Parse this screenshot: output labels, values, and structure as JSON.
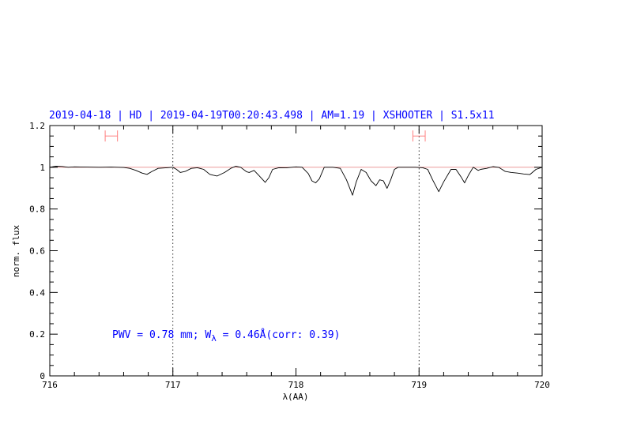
{
  "chart_data": {
    "type": "line",
    "title": "2019-04-18 | HD | 2019-04-19T00:20:43.498 | AM=1.19 | XSHOOTER | S1.5x11",
    "xlabel": "λ(AA)",
    "ylabel": "norm. flux",
    "xlim": [
      716,
      720
    ],
    "ylim": [
      0,
      1.2
    ],
    "xticks": [
      "716",
      "717",
      "718",
      "719",
      "720"
    ],
    "yticks": [
      "0",
      "0.2",
      "0.4",
      "0.6",
      "0.8",
      "1",
      "1.2"
    ],
    "continuum_level": 1.0,
    "vertical_markers": [
      717,
      719
    ],
    "error_bars": [
      {
        "x": [
          716.45,
          716.55
        ],
        "y": 1.15
      },
      {
        "x": [
          718.95,
          719.05
        ],
        "y": 1.15
      }
    ],
    "annotation": {
      "part1": "PWV = 0.78 mm; W",
      "sub": "λ",
      "part2": " = 0.46Å(corr: 0.39)"
    },
    "colors": {
      "title": "#0000ff",
      "annotation": "#0000ff",
      "spectrum": "#000000",
      "continuum": "#e07070",
      "error_bars": "#ff8080"
    },
    "series": [
      {
        "x": [
          716.0,
          716.05,
          716.1,
          716.15,
          716.2,
          716.3,
          716.4,
          716.5,
          716.6,
          716.65,
          716.7,
          716.75,
          716.79,
          716.83,
          716.88,
          716.95,
          717.0,
          717.03,
          717.06,
          717.1,
          717.15,
          717.2,
          717.25,
          717.3,
          717.33,
          717.36,
          717.42,
          717.47,
          717.51,
          717.55,
          717.6,
          717.62,
          717.66,
          717.7,
          717.75,
          717.78,
          717.81,
          717.86,
          717.92,
          718.0,
          718.05,
          718.1,
          718.13,
          718.16,
          718.19,
          718.23,
          718.3,
          718.36,
          718.41,
          718.46,
          718.49,
          718.53,
          718.57,
          718.61,
          718.65,
          718.68,
          718.71,
          718.74,
          718.77,
          718.8,
          718.83,
          718.9,
          718.97,
          719.03,
          719.07,
          719.11,
          719.16,
          719.2,
          719.26,
          719.3,
          719.34,
          719.37,
          719.4,
          719.44,
          719.48,
          719.5,
          719.55,
          719.6,
          719.65,
          719.7,
          719.75,
          719.8,
          719.85,
          719.9,
          719.95,
          720.0
        ],
        "y": [
          1.0,
          1.005,
          1.004,
          1.0,
          1.002,
          1.001,
          1.0,
          1.001,
          0.999,
          0.995,
          0.985,
          0.972,
          0.966,
          0.98,
          0.995,
          0.998,
          1.0,
          0.99,
          0.975,
          0.98,
          0.995,
          0.998,
          0.99,
          0.966,
          0.962,
          0.958,
          0.975,
          0.995,
          1.005,
          1.0,
          0.978,
          0.975,
          0.985,
          0.96,
          0.928,
          0.95,
          0.99,
          0.998,
          0.997,
          1.002,
          1.0,
          0.97,
          0.935,
          0.925,
          0.945,
          1.0,
          1.0,
          0.995,
          0.94,
          0.866,
          0.93,
          0.99,
          0.975,
          0.935,
          0.912,
          0.94,
          0.935,
          0.899,
          0.94,
          0.99,
          1.0,
          1.0,
          1.0,
          0.998,
          0.99,
          0.94,
          0.883,
          0.93,
          0.99,
          0.99,
          0.955,
          0.925,
          0.96,
          1.0,
          0.985,
          0.99,
          0.995,
          1.003,
          0.999,
          0.98,
          0.975,
          0.972,
          0.968,
          0.965,
          0.99,
          1.0
        ]
      }
    ]
  }
}
